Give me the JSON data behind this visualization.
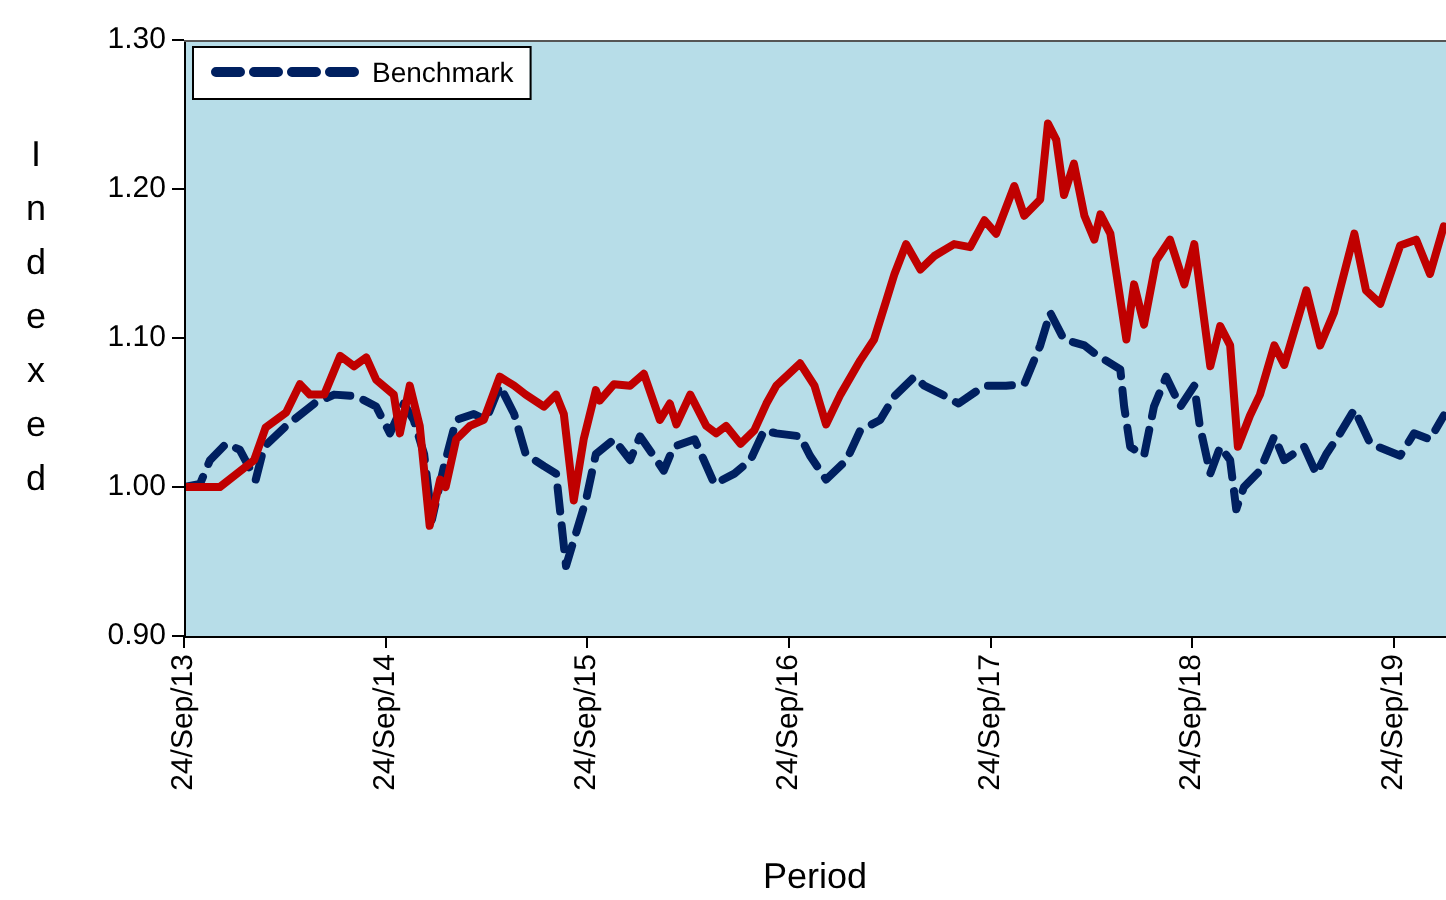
{
  "chart_data": {
    "type": "line",
    "xlabel": "Period",
    "ylabel": "Indexed",
    "xlim": [
      "2013-09-24",
      "2019-12-28"
    ],
    "xticks": [
      {
        "value": "2013-09-24",
        "label": "24/Sep/13"
      },
      {
        "value": "2014-09-24",
        "label": "24/Sep/14"
      },
      {
        "value": "2015-09-24",
        "label": "24/Sep/15"
      },
      {
        "value": "2016-09-24",
        "label": "24/Sep/16"
      },
      {
        "value": "2017-09-24",
        "label": "24/Sep/17"
      },
      {
        "value": "2018-09-24",
        "label": "24/Sep/18"
      },
      {
        "value": "2019-09-24",
        "label": "24/Sep/19"
      }
    ],
    "ylim": [
      0.9,
      1.3
    ],
    "yticks": [
      {
        "value": 0.9,
        "label": "0.90"
      },
      {
        "value": 1.0,
        "label": "1.00"
      },
      {
        "value": 1.1,
        "label": "1.10"
      },
      {
        "value": 1.2,
        "label": "1.20"
      },
      {
        "value": 1.3,
        "label": "1.30"
      }
    ],
    "grid": false,
    "legend": "top left",
    "marker": "none",
    "series": [
      {
        "color": "#c00000",
        "line_style": "solid",
        "x": [
          "2013-09-24",
          "2013-11-28",
          "2014-01-29",
          "2014-02-19",
          "2014-03-28",
          "2014-04-22",
          "2014-05-10",
          "2014-06-05",
          "2014-07-04",
          "2014-07-29",
          "2014-08-20",
          "2014-09-07",
          "2014-10-09",
          "2014-10-20",
          "2014-11-07",
          "2014-11-25",
          "2014-12-13",
          "2015-01-01",
          "2015-01-11",
          "2015-01-30",
          "2015-02-24",
          "2015-03-21",
          "2015-04-19",
          "2015-05-15",
          "2015-06-05",
          "2015-07-08",
          "2015-07-30",
          "2015-08-13",
          "2015-08-31",
          "2015-09-18",
          "2015-10-10",
          "2015-10-17",
          "2015-11-12",
          "2015-12-11",
          "2016-01-05",
          "2016-02-03",
          "2016-02-21",
          "2016-03-04",
          "2016-03-29",
          "2016-04-27",
          "2016-05-15",
          "2016-06-02",
          "2016-06-28",
          "2016-07-23",
          "2016-08-14",
          "2016-09-01",
          "2016-10-14",
          "2016-11-09",
          "2016-11-30",
          "2016-12-26",
          "2017-01-31",
          "2017-02-25",
          "2017-03-19",
          "2017-04-03",
          "2017-04-24",
          "2017-05-20",
          "2017-06-14",
          "2017-07-20",
          "2017-08-18",
          "2017-09-13",
          "2017-10-04",
          "2017-11-06",
          "2017-11-24",
          "2017-12-23",
          "2018-01-06",
          "2018-01-21",
          "2018-02-04",
          "2018-02-22",
          "2018-03-13",
          "2018-03-31",
          "2018-04-11",
          "2018-04-29",
          "2018-05-28",
          "2018-06-11",
          "2018-06-29",
          "2018-07-21",
          "2018-08-15",
          "2018-09-10",
          "2018-09-28",
          "2018-10-27",
          "2018-11-14",
          "2018-12-02",
          "2018-12-16",
          "2019-01-07",
          "2019-01-25",
          "2019-02-20",
          "2019-03-10",
          "2019-04-19",
          "2019-05-14",
          "2019-06-08",
          "2019-07-15",
          "2019-08-05",
          "2019-08-31",
          "2019-10-06",
          "2019-11-04",
          "2019-11-29",
          "2019-12-24"
        ],
        "values": [
          1.0,
          1.0,
          1.018,
          1.04,
          1.05,
          1.069,
          1.062,
          1.062,
          1.088,
          1.081,
          1.087,
          1.072,
          1.062,
          1.036,
          1.068,
          1.041,
          0.974,
          1.005,
          1.0,
          1.032,
          1.041,
          1.045,
          1.074,
          1.068,
          1.062,
          1.054,
          1.062,
          1.049,
          0.991,
          1.032,
          1.065,
          1.058,
          1.069,
          1.068,
          1.076,
          1.045,
          1.056,
          1.042,
          1.062,
          1.041,
          1.036,
          1.041,
          1.029,
          1.038,
          1.056,
          1.068,
          1.083,
          1.068,
          1.042,
          1.062,
          1.085,
          1.099,
          1.125,
          1.143,
          1.163,
          1.146,
          1.155,
          1.163,
          1.161,
          1.179,
          1.17,
          1.202,
          1.182,
          1.193,
          1.244,
          1.233,
          1.196,
          1.217,
          1.182,
          1.166,
          1.183,
          1.17,
          1.099,
          1.136,
          1.109,
          1.152,
          1.166,
          1.136,
          1.163,
          1.081,
          1.108,
          1.095,
          1.027,
          1.048,
          1.062,
          1.095,
          1.082,
          1.132,
          1.095,
          1.117,
          1.17,
          1.132,
          1.123,
          1.162,
          1.166,
          1.143,
          1.175
        ]
      },
      {
        "name": "Benchmark",
        "color": "#002060",
        "line_style": "dashed",
        "x": [
          "2013-09-24",
          "2013-10-23",
          "2013-11-10",
          "2013-12-09",
          "2014-01-03",
          "2014-02-01",
          "2014-02-16",
          "2014-03-28",
          "2014-05-18",
          "2014-06-23",
          "2014-08-02",
          "2014-09-07",
          "2014-10-02",
          "2014-10-27",
          "2014-11-14",
          "2014-12-03",
          "2014-12-17",
          "2015-01-08",
          "2015-01-30",
          "2015-03-03",
          "2015-03-25",
          "2015-04-19",
          "2015-05-15",
          "2015-06-05",
          "2015-07-08",
          "2015-07-30",
          "2015-08-17",
          "2015-09-04",
          "2015-09-22",
          "2015-10-10",
          "2015-11-12",
          "2015-12-11",
          "2015-12-29",
          "2016-02-10",
          "2016-02-28",
          "2016-04-06",
          "2016-05-12",
          "2016-06-17",
          "2016-07-16",
          "2016-08-10",
          "2016-09-01",
          "2016-10-14",
          "2016-11-01",
          "2016-11-30",
          "2017-01-06",
          "2017-01-31",
          "2017-03-08",
          "2017-04-03",
          "2017-05-09",
          "2017-05-27",
          "2017-06-29",
          "2017-07-28",
          "2017-09-13",
          "2017-10-22",
          "2017-11-24",
          "2017-12-23",
          "2018-01-10",
          "2018-02-04",
          "2018-03-13",
          "2018-04-03",
          "2018-05-17",
          "2018-05-24",
          "2018-06-04",
          "2018-06-29",
          "2018-07-17",
          "2018-08-08",
          "2018-09-03",
          "2018-09-28",
          "2018-10-08",
          "2018-10-27",
          "2018-11-14",
          "2018-12-02",
          "2018-12-13",
          "2018-12-27",
          "2019-01-25",
          "2019-02-20",
          "2019-03-10",
          "2019-04-15",
          "2019-05-07",
          "2019-05-25",
          "2019-06-19",
          "2019-07-15",
          "2019-08-13",
          "2019-10-06",
          "2019-10-31",
          "2019-11-29",
          "2019-12-24"
        ],
        "values": [
          1.0,
          1.002,
          1.018,
          1.029,
          1.025,
          1.005,
          1.027,
          1.041,
          1.056,
          1.062,
          1.061,
          1.054,
          1.036,
          1.056,
          1.045,
          1.022,
          0.978,
          1.014,
          1.045,
          1.049,
          1.045,
          1.068,
          1.049,
          1.022,
          1.014,
          1.009,
          0.947,
          0.969,
          0.991,
          1.022,
          1.032,
          1.018,
          1.034,
          1.011,
          1.027,
          1.032,
          1.002,
          1.009,
          1.018,
          1.038,
          1.036,
          1.034,
          1.021,
          1.005,
          1.018,
          1.038,
          1.045,
          1.061,
          1.074,
          1.068,
          1.062,
          1.056,
          1.068,
          1.068,
          1.069,
          1.095,
          1.117,
          1.099,
          1.095,
          1.089,
          1.079,
          1.054,
          1.027,
          1.021,
          1.054,
          1.074,
          1.054,
          1.068,
          1.041,
          1.009,
          1.027,
          1.018,
          0.985,
          1.0,
          1.011,
          1.034,
          1.018,
          1.027,
          1.009,
          1.022,
          1.036,
          1.052,
          1.029,
          1.021,
          1.036,
          1.032,
          1.048
        ]
      }
    ]
  }
}
